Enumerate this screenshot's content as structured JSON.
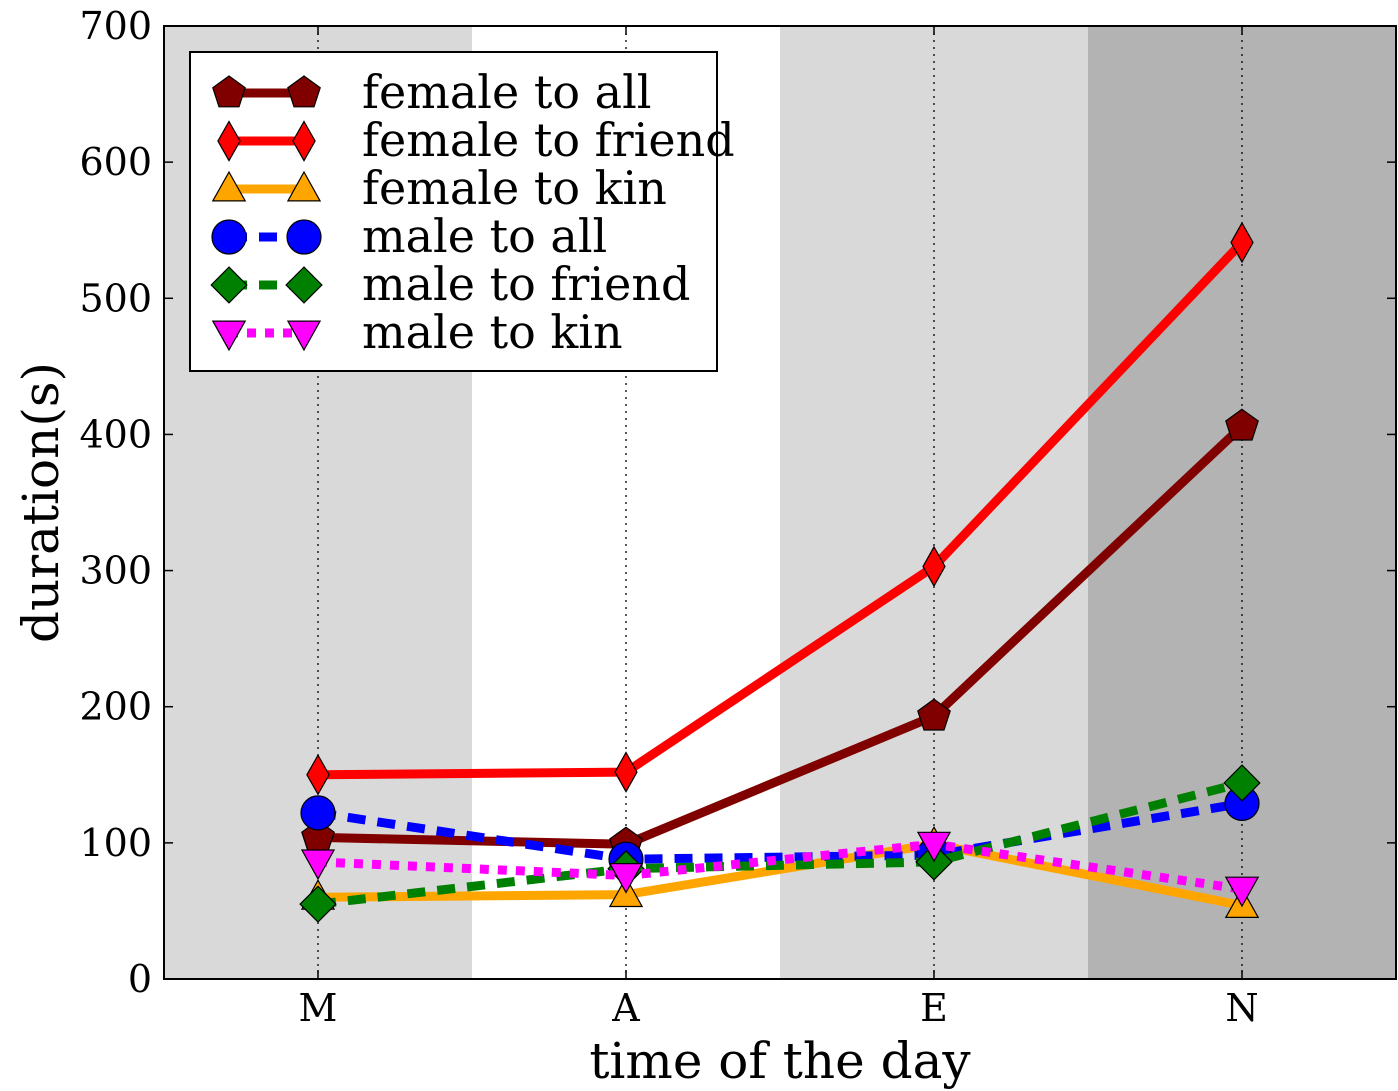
{
  "chart_data": {
    "type": "line",
    "title": "",
    "xlabel": "time of the day",
    "ylabel": "duration(s)",
    "categories": [
      "M",
      "A",
      "E",
      "N"
    ],
    "ylim": [
      0,
      700
    ],
    "yticks": [
      0,
      100,
      200,
      300,
      400,
      500,
      600,
      700
    ],
    "grid": "vertical dotted lines at each category",
    "background_bands": [
      {
        "category": "M",
        "color": "#d9d9d9"
      },
      {
        "category": "A",
        "color": "#ffffff"
      },
      {
        "category": "E",
        "color": "#d9d9d9"
      },
      {
        "category": "N",
        "color": "#b3b3b3"
      }
    ],
    "legend_position": "top-left",
    "series": [
      {
        "name": "female to all",
        "values": [
          104,
          99,
          193,
          406
        ],
        "color": "#800000",
        "marker": "pentagon",
        "dash": "solid"
      },
      {
        "name": "female to friend",
        "values": [
          150,
          152,
          303,
          541
        ],
        "color": "#ff0000",
        "marker": "thin-diamond",
        "dash": "solid"
      },
      {
        "name": "female to kin",
        "values": [
          60,
          62,
          99,
          54
        ],
        "color": "#ffa500",
        "marker": "triangle-up",
        "dash": "solid"
      },
      {
        "name": "male to all",
        "values": [
          122,
          88,
          91,
          129
        ],
        "color": "#0000ff",
        "marker": "circle",
        "dash": "dashed"
      },
      {
        "name": "male to friend",
        "values": [
          55,
          81,
          86,
          144
        ],
        "color": "#008000",
        "marker": "diamond",
        "dash": "dashed"
      },
      {
        "name": "male to kin",
        "values": [
          86,
          76,
          99,
          66
        ],
        "color": "#ff00ff",
        "marker": "triangle-down",
        "dash": "dotted"
      }
    ]
  }
}
